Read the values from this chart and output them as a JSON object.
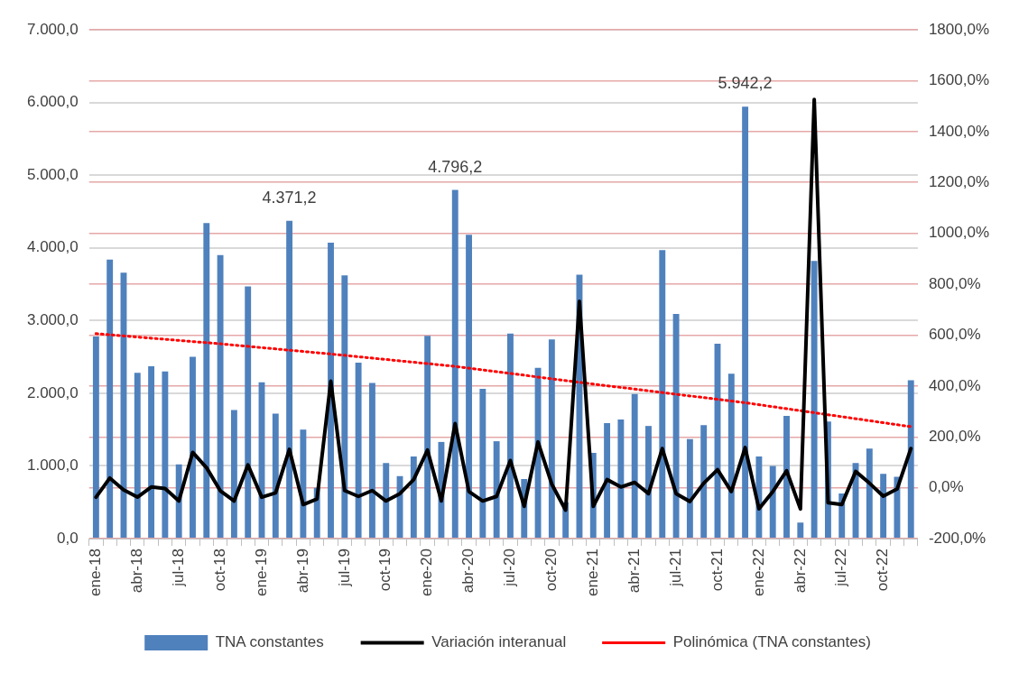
{
  "chart_data": {
    "type": "bar",
    "categories": [
      "ene-18",
      null,
      null,
      "abr-18",
      null,
      null,
      "jul-18",
      null,
      null,
      "oct-18",
      null,
      null,
      "ene-19",
      null,
      null,
      "abr-19",
      null,
      null,
      "jul-19",
      null,
      null,
      "oct-19",
      null,
      null,
      "ene-20",
      null,
      null,
      "abr-20",
      null,
      null,
      "jul-20",
      null,
      null,
      "oct-20",
      null,
      null,
      "ene-21",
      null,
      null,
      "abr-21",
      null,
      null,
      "jul-21",
      null,
      null,
      "oct-21",
      null,
      null,
      "ene-22",
      null,
      null,
      "abr-22",
      null,
      null,
      "jul-22",
      null,
      null,
      "oct-22",
      null,
      null
    ],
    "series": [
      {
        "name": "TNA constantes",
        "color": "#4f81bd",
        "values": [
          2780,
          3840,
          3660,
          2280,
          2370,
          2300,
          1020,
          2500,
          4340,
          3900,
          1770,
          3470,
          2150,
          1720,
          4371.2,
          1500,
          700,
          4070,
          3620,
          2420,
          2140,
          1040,
          860,
          1130,
          2790,
          1330,
          4796.2,
          4180,
          2060,
          1340,
          2820,
          820,
          2350,
          2740,
          500,
          3630,
          1180,
          1590,
          1640,
          1990,
          1550,
          3970,
          3090,
          1370,
          1560,
          2680,
          2270,
          5942.2,
          1130,
          1000,
          1690,
          220,
          3820,
          1610,
          620,
          1040,
          1240,
          890,
          850,
          2180
        ],
        "value_labels": [
          null,
          null,
          null,
          null,
          null,
          null,
          null,
          null,
          null,
          null,
          null,
          null,
          null,
          null,
          "4.371,2",
          null,
          null,
          null,
          null,
          null,
          null,
          null,
          null,
          null,
          null,
          null,
          "4.796,2",
          null,
          null,
          null,
          null,
          null,
          null,
          null,
          null,
          null,
          null,
          null,
          null,
          null,
          null,
          null,
          null,
          null,
          null,
          null,
          null,
          "5.942,2",
          null,
          null,
          null,
          null,
          null,
          null,
          null,
          null,
          null,
          null,
          null,
          null
        ]
      },
      {
        "name": "Variación interanual",
        "type": "line",
        "axis": "y2",
        "color": "#000000",
        "values": [
          -37,
          38,
          -8,
          -37,
          3,
          -3,
          -52,
          139,
          79,
          -12,
          -52,
          90,
          -37,
          -20,
          151,
          -66,
          -44,
          419,
          -11,
          -34,
          -11,
          -52,
          -23,
          32,
          148,
          -52,
          252,
          -15,
          -52,
          -34,
          107,
          -73,
          180,
          14,
          -88,
          733,
          -73,
          32,
          3,
          21,
          -23,
          154,
          -23,
          -54,
          18,
          71,
          -15,
          158,
          -83,
          -15,
          67,
          -83,
          1526,
          -59,
          -66,
          64,
          18,
          -33,
          -5,
          154
        ]
      },
      {
        "name": "Polinómica (TNA constantes)",
        "type": "line",
        "color": "#ff0000",
        "line_style": "dotted",
        "values": [
          2820,
          null,
          null,
          null,
          null,
          null,
          null,
          null,
          null,
          2680,
          null,
          null,
          null,
          null,
          null,
          null,
          null,
          2540,
          null,
          null,
          null,
          null,
          null,
          null,
          null,
          null,
          2370,
          null,
          null,
          null,
          null,
          null,
          null,
          null,
          null,
          2150,
          null,
          null,
          null,
          null,
          null,
          null,
          null,
          null,
          null,
          null,
          null,
          1870,
          null,
          null,
          null,
          null,
          null,
          null,
          null,
          null,
          null,
          null,
          null,
          1540
        ]
      }
    ],
    "ylim": [
      0,
      7000
    ],
    "yticks": [
      {
        "value": 0,
        "label": "0,0"
      },
      {
        "value": 1000,
        "label": "1.000,0"
      },
      {
        "value": 2000,
        "label": "2.000,0"
      },
      {
        "value": 3000,
        "label": "3.000,0"
      },
      {
        "value": 4000,
        "label": "4.000,0"
      },
      {
        "value": 5000,
        "label": "5.000,0"
      },
      {
        "value": 6000,
        "label": "6.000,0"
      },
      {
        "value": 7000,
        "label": "7.000,0"
      }
    ],
    "y2lim": [
      -200,
      1800
    ],
    "y2ticks": [
      {
        "value": -200,
        "label": "-200,0%"
      },
      {
        "value": 0,
        "label": "0,0%"
      },
      {
        "value": 200,
        "label": "200,0%"
      },
      {
        "value": 400,
        "label": "400,0%"
      },
      {
        "value": 600,
        "label": "600,0%"
      },
      {
        "value": 800,
        "label": "800,0%"
      },
      {
        "value": 1000,
        "label": "1000,0%"
      },
      {
        "value": 1200,
        "label": "1200,0%"
      },
      {
        "value": 1400,
        "label": "1400,0%"
      },
      {
        "value": 1600,
        "label": "1600,0%"
      },
      {
        "value": 1800,
        "label": "1800,0%"
      }
    ],
    "grid": true,
    "legend": "bottom"
  }
}
